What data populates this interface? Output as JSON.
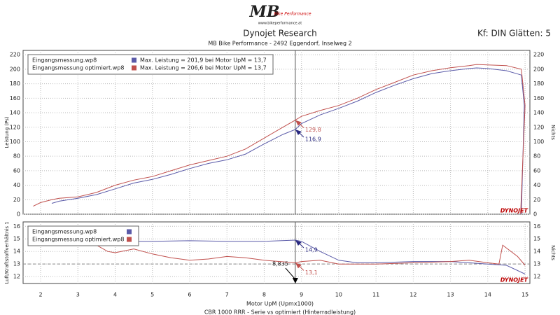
{
  "header": {
    "logo": "MB",
    "logo_sub": "Bike Performance",
    "url": "www.bikeperformance.at",
    "title": "Dynojet Research",
    "subtitle": "MB Bike Performance - 2492 Eggendorf, Inselweg 2",
    "settings": "Kf: DIN Glätten: 5"
  },
  "footer": "CBR 1000 RRR - Serie vs optimiert (Hinterradleistung)",
  "brand": "DYNOJET",
  "chart_data": [
    {
      "type": "line",
      "ylabel": "Leistung (Ps)",
      "y2label": "Nichts",
      "xlim": [
        1.53,
        15.13
      ],
      "ylim": [
        0,
        226
      ],
      "xticks": [
        2,
        3,
        4,
        5,
        6,
        7,
        8,
        9,
        10,
        11,
        12,
        13,
        14,
        15
      ],
      "yticks": [
        0,
        20,
        40,
        60,
        80,
        100,
        120,
        140,
        160,
        180,
        200,
        220
      ],
      "grid": true,
      "legend": [
        "Max. Leistung = 201,9 bei Motor UpM = 13,7",
        "Max. Leistung = 206,6 bei Motor UpM = 13,7"
      ],
      "series": [
        {
          "name": "Eingangsmessung.wp8",
          "color": "#5a5aa8",
          "x": [
            2.3,
            2.5,
            3,
            3.5,
            4,
            4.5,
            5,
            5.5,
            6,
            6.5,
            7,
            7.5,
            8,
            8.5,
            8.835,
            9,
            9.5,
            10,
            10.5,
            11,
            11.5,
            12,
            12.5,
            13,
            13.5,
            13.7,
            14,
            14.5,
            14.9,
            14.98,
            14.9
          ],
          "values": [
            15,
            18,
            22,
            27,
            35,
            43,
            48,
            55,
            63,
            70,
            75,
            83,
            97,
            110,
            116.9,
            125,
            137,
            146,
            156,
            168,
            178,
            187,
            194,
            198,
            201,
            201.9,
            201,
            198,
            192,
            150,
            0
          ]
        },
        {
          "name": "Eingangsmessung optimiert.wp8",
          "color": "#c0504d",
          "x": [
            1.8,
            2,
            2.3,
            2.5,
            3,
            3.5,
            4,
            4.5,
            5,
            5.5,
            6,
            6.5,
            7,
            7.5,
            8,
            8.5,
            8.835,
            9,
            9.5,
            10,
            10.5,
            11,
            11.5,
            12,
            12.5,
            13,
            13.5,
            13.7,
            14,
            14.5,
            14.9,
            15,
            14.88
          ],
          "values": [
            11,
            16,
            20,
            22,
            24,
            30,
            40,
            47,
            52,
            60,
            68,
            74,
            80,
            90,
            105,
            120,
            129.8,
            135,
            143,
            150,
            160,
            172,
            182,
            192,
            198,
            202,
            205,
            206.6,
            206,
            205,
            200,
            150,
            0
          ]
        }
      ],
      "annotations": [
        {
          "x": 8.835,
          "value": 129.8,
          "label": "129,8",
          "color": "#c0504d"
        },
        {
          "x": 8.835,
          "value": 116.9,
          "label": "116,9",
          "color": "#2a2a80"
        }
      ]
    },
    {
      "type": "line",
      "ylabel": "Luft/Kraftstoffverhältnis 1",
      "y2label": "Nichts",
      "xlabel": "Motor UpM (Upmx1000)",
      "xlim": [
        1.53,
        15.13
      ],
      "ylim": [
        11.45,
        16.35
      ],
      "xticks": [
        2,
        3,
        4,
        5,
        6,
        7,
        8,
        9,
        10,
        11,
        12,
        13,
        14,
        15
      ],
      "yticks": [
        12,
        13,
        14,
        15,
        16
      ],
      "grid": true,
      "reference": 13,
      "cursor": {
        "value": 8.835,
        "label": "8,835"
      },
      "series": [
        {
          "name": "Eingangsmessung.wp8",
          "color": "#5a5aa8",
          "x": [
            2.9,
            3,
            3.5,
            4,
            4.5,
            5,
            6,
            7,
            8,
            8.835,
            9,
            9.5,
            10,
            10.5,
            11,
            12,
            13,
            13.5,
            14,
            14.5,
            15
          ],
          "values": [
            15.2,
            15,
            14.9,
            14.7,
            14.8,
            14.8,
            14.85,
            14.8,
            14.8,
            14.9,
            14.8,
            14,
            13.3,
            13.1,
            13.1,
            13.2,
            13.2,
            13.1,
            13,
            12.9,
            12.2
          ]
        },
        {
          "name": "Eingangsmessung optimiert.wp8",
          "color": "#c0504d",
          "x": [
            2.9,
            3,
            3.5,
            3.8,
            4,
            4.5,
            5,
            5.5,
            6,
            6.5,
            7,
            7.5,
            8,
            8.835,
            9,
            9.5,
            10,
            11,
            12,
            13,
            13.5,
            14,
            14.3,
            14.4,
            14.8,
            15
          ],
          "values": [
            15,
            14.9,
            14.5,
            14,
            13.9,
            14.2,
            13.8,
            13.5,
            13.3,
            13.4,
            13.6,
            13.5,
            13.3,
            13.1,
            13.2,
            13.3,
            13,
            13,
            13.1,
            13.2,
            13.3,
            13.1,
            13,
            14.5,
            13.6,
            12.9
          ]
        }
      ],
      "annotations": [
        {
          "x": 8.835,
          "value": 14.9,
          "label": "14,9",
          "color": "#2a2a80"
        },
        {
          "x": 8.835,
          "value": 13.1,
          "label": "13,1",
          "color": "#c0504d"
        }
      ]
    }
  ]
}
